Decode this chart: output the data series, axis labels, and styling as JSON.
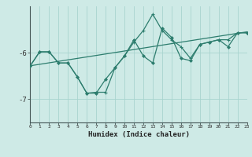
{
  "xlabel": "Humidex (Indice chaleur)",
  "ylabel": "",
  "x": [
    0,
    1,
    2,
    3,
    4,
    5,
    6,
    7,
    8,
    9,
    10,
    11,
    12,
    13,
    14,
    15,
    16,
    17,
    18,
    19,
    20,
    21,
    22,
    23
  ],
  "line1": [
    -6.28,
    -5.98,
    -5.98,
    -6.22,
    -6.22,
    -6.52,
    -6.87,
    -6.85,
    -6.85,
    -6.32,
    -6.07,
    -5.77,
    -5.52,
    -5.17,
    -5.52,
    -5.72,
    -5.87,
    -6.12,
    -5.82,
    -5.77,
    -5.72,
    -5.72,
    -5.57,
    -5.57
  ],
  "line2": [
    -6.28,
    -5.98,
    -5.98,
    -6.22,
    -6.22,
    -6.52,
    -6.87,
    -6.87,
    -6.57,
    -6.32,
    -6.07,
    -5.72,
    -6.07,
    -6.22,
    -5.47,
    -5.67,
    -6.12,
    -6.17,
    -5.82,
    -5.77,
    -5.72,
    -5.87,
    -5.57,
    -5.57
  ],
  "line3_x": [
    0,
    23
  ],
  "line3_y": [
    -6.28,
    -5.55
  ],
  "color": "#2d7d6e",
  "bg_color": "#ceeae6",
  "grid_color": "#a8d4cf",
  "ylim": [
    -7.5,
    -5.0
  ],
  "yticks": [
    -7.0,
    -6.0
  ],
  "ytick_labels": [
    "-7",
    "-6"
  ],
  "xlim": [
    0,
    23
  ],
  "xticks": [
    0,
    1,
    2,
    3,
    4,
    5,
    6,
    7,
    8,
    9,
    10,
    11,
    12,
    13,
    14,
    15,
    16,
    17,
    18,
    19,
    20,
    21,
    22,
    23
  ],
  "figsize": [
    3.2,
    2.0
  ],
  "dpi": 100
}
